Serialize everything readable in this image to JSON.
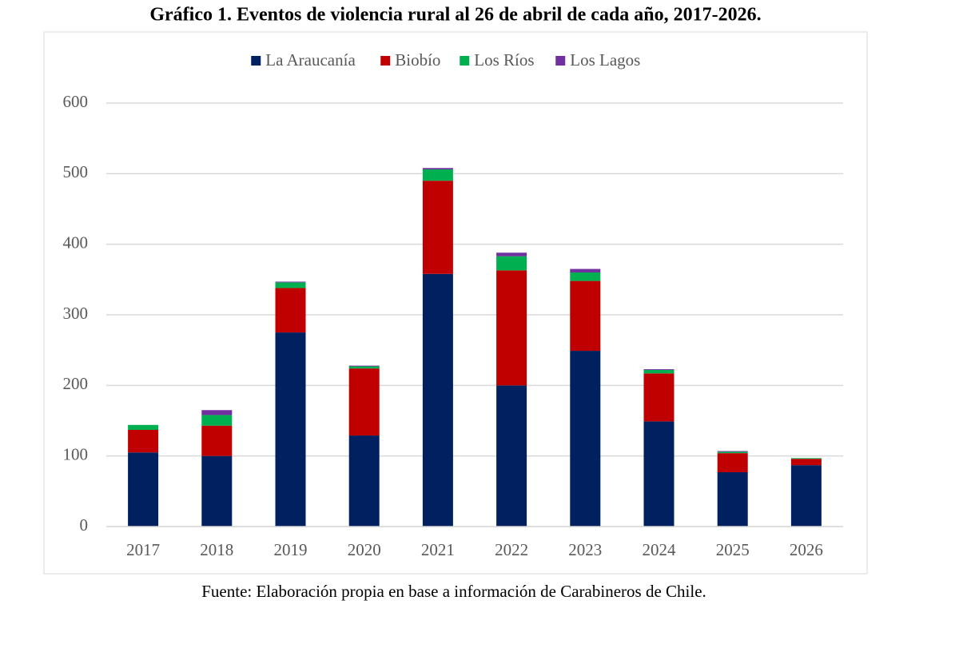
{
  "chart_data": {
    "type": "stacked_bar",
    "title": "Gráfico 1. Eventos de violencia rural al 26 de abril de cada año, 2017-2026.",
    "source": "Fuente: Elaboración propia en base a información de Carabineros de Chile.",
    "categories": [
      "2017",
      "2018",
      "2019",
      "2020",
      "2021",
      "2022",
      "2023",
      "2024",
      "2025",
      "2026"
    ],
    "series": [
      {
        "name": "La Araucanía",
        "color": "#002060",
        "values": [
          105,
          100,
          275,
          129,
          358,
          200,
          249,
          149,
          77,
          87
        ]
      },
      {
        "name": "Biobío",
        "color": "#c00000",
        "values": [
          32,
          43,
          63,
          95,
          132,
          163,
          99,
          68,
          27,
          9
        ]
      },
      {
        "name": "Los Ríos",
        "color": "#00b050",
        "values": [
          7,
          15,
          8,
          3,
          16,
          20,
          12,
          5,
          2,
          1
        ]
      },
      {
        "name": "Los Lagos",
        "color": "#7030a0",
        "values": [
          0,
          7,
          1,
          1,
          2,
          5,
          5,
          1,
          1,
          0
        ]
      }
    ],
    "ylim": [
      0,
      600
    ],
    "yticks": [
      0,
      100,
      200,
      300,
      400,
      500,
      600
    ],
    "grid": true,
    "legend": "top"
  }
}
